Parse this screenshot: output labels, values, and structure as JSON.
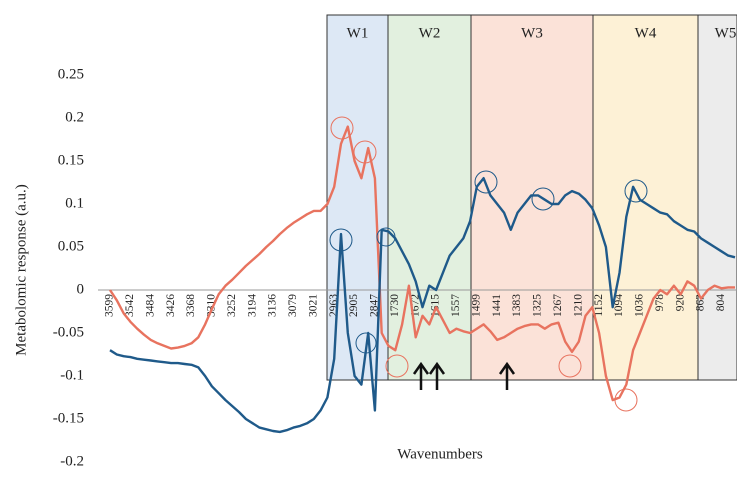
{
  "chart_data": {
    "type": "line",
    "y_label": "Metabolomic response (a.u.)",
    "x_label": "Wavenumbers",
    "regions": [
      "W1",
      "W2",
      "W3",
      "W4",
      "W5"
    ],
    "categories": [
      "3599",
      null,
      null,
      "3542",
      null,
      null,
      "3484",
      null,
      null,
      "3426",
      null,
      null,
      "3368",
      null,
      null,
      "3310",
      null,
      null,
      "3252",
      null,
      null,
      "3194",
      null,
      null,
      "3136",
      null,
      null,
      "3079",
      null,
      null,
      "3021",
      null,
      null,
      "2963",
      null,
      null,
      "2905",
      null,
      null,
      "2847",
      null,
      null,
      "1730",
      null,
      null,
      "1672",
      null,
      null,
      "1615",
      null,
      null,
      "1557",
      null,
      null,
      "1499",
      null,
      null,
      "1441",
      null,
      null,
      "1383",
      null,
      null,
      "1325",
      null,
      null,
      "1267",
      null,
      null,
      "1210",
      null,
      null,
      "1152",
      null,
      null,
      "1094",
      null,
      null,
      "1036",
      null,
      null,
      "978",
      null,
      null,
      "920",
      null,
      null,
      "862",
      null,
      null,
      "804",
      null,
      null
    ],
    "series": [
      {
        "color": "#e8735f",
        "values": [
          0.0,
          -0.012,
          -0.027,
          -0.037,
          -0.045,
          -0.052,
          -0.058,
          -0.062,
          -0.065,
          -0.068,
          -0.067,
          -0.065,
          -0.062,
          -0.055,
          -0.04,
          -0.022,
          -0.005,
          0.005,
          0.012,
          0.02,
          0.028,
          0.035,
          0.042,
          0.05,
          0.057,
          0.065,
          0.072,
          0.078,
          0.083,
          0.088,
          0.092,
          0.092,
          0.1,
          0.12,
          0.17,
          0.19,
          0.15,
          0.13,
          0.165,
          0.13,
          -0.05,
          -0.065,
          -0.07,
          -0.04,
          0.005,
          -0.055,
          -0.03,
          -0.04,
          -0.02,
          -0.035,
          -0.05,
          -0.045,
          -0.048,
          -0.05,
          -0.045,
          -0.04,
          -0.048,
          -0.058,
          -0.055,
          -0.05,
          -0.045,
          -0.042,
          -0.04,
          -0.04,
          -0.045,
          -0.04,
          -0.038,
          -0.06,
          -0.072,
          -0.06,
          -0.03,
          -0.02,
          -0.05,
          -0.1,
          -0.128,
          -0.125,
          -0.11,
          -0.07,
          -0.05,
          -0.03,
          -0.01,
          0.0,
          -0.005,
          0.005,
          -0.005,
          0.01,
          0.005,
          -0.01,
          0.0,
          0.005,
          0.002,
          0.003,
          0.003
        ]
      },
      {
        "color": "#1f5a8a",
        "values": [
          -0.07,
          -0.075,
          -0.077,
          -0.078,
          -0.08,
          -0.081,
          -0.082,
          -0.083,
          -0.084,
          -0.085,
          -0.085,
          -0.086,
          -0.087,
          -0.09,
          -0.1,
          -0.112,
          -0.12,
          -0.128,
          -0.135,
          -0.142,
          -0.15,
          -0.155,
          -0.16,
          -0.162,
          -0.164,
          -0.165,
          -0.163,
          -0.16,
          -0.158,
          -0.155,
          -0.15,
          -0.14,
          -0.125,
          -0.08,
          0.065,
          -0.05,
          -0.1,
          -0.11,
          -0.05,
          -0.14,
          0.07,
          0.068,
          0.06,
          0.045,
          0.03,
          0.01,
          -0.02,
          0.005,
          0.0,
          0.02,
          0.04,
          0.05,
          0.06,
          0.08,
          0.12,
          0.13,
          0.11,
          0.1,
          0.09,
          0.07,
          0.09,
          0.1,
          0.11,
          0.11,
          0.105,
          0.1,
          0.1,
          0.11,
          0.115,
          0.112,
          0.105,
          0.095,
          0.075,
          0.05,
          -0.02,
          0.02,
          0.085,
          0.12,
          0.105,
          0.1,
          0.095,
          0.09,
          0.088,
          0.08,
          0.075,
          0.07,
          0.068,
          0.06,
          0.055,
          0.05,
          0.045,
          0.04,
          0.038
        ]
      }
    ],
    "ylim": [
      -0.2,
      0.25
    ],
    "yticks": [
      -0.2,
      -0.15,
      -0.1,
      -0.05,
      0,
      0.05,
      0.1,
      0.15,
      0.2,
      0.25
    ]
  }
}
